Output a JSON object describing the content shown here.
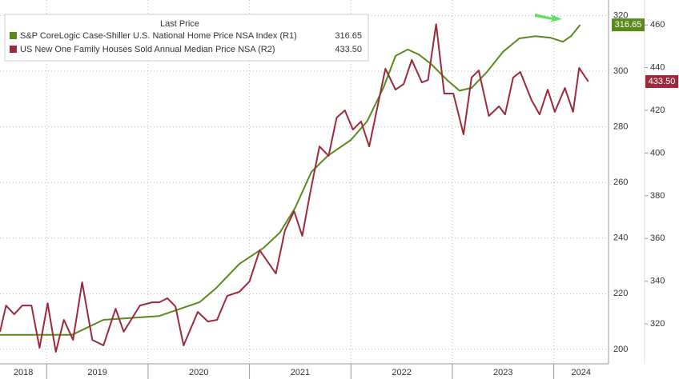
{
  "chart_data": {
    "type": "line",
    "legend_title": "Last Price",
    "xlim": [
      2018.54,
      2024.54
    ],
    "xgrid": [
      2019,
      2020,
      2021,
      2022,
      2023,
      2024
    ],
    "xticks": [
      {
        "value": 2018.77,
        "label": "2018"
      },
      {
        "value": 2019.5,
        "label": "2019"
      },
      {
        "value": 2020.5,
        "label": "2020"
      },
      {
        "value": 2021.5,
        "label": "2021"
      },
      {
        "value": 2022.5,
        "label": "2022"
      },
      {
        "value": 2023.5,
        "label": "2023"
      },
      {
        "value": 2024.27,
        "label": "2024"
      }
    ],
    "ylim": [
      194.8,
      325.6
    ],
    "yticks": [
      200,
      220,
      240,
      260,
      280,
      300,
      320
    ],
    "y2lim": [
      301.3,
      471.7
    ],
    "y2ticks": [
      320,
      340,
      360,
      380,
      400,
      420,
      440,
      460
    ],
    "grid": true,
    "series": [
      {
        "name": "S&P CoreLogic Case-Shiller U.S. National Home Price NSA Index (R1)",
        "color": "#5a8a1c",
        "axis": "y",
        "last_label": "316.65",
        "x": [
          2018.54,
          2019.25,
          2019.56,
          2020.11,
          2020.51,
          2020.67,
          2020.9,
          2021.14,
          2021.3,
          2021.45,
          2021.61,
          2021.77,
          2022.0,
          2022.16,
          2022.32,
          2022.44,
          2022.56,
          2022.67,
          2022.79,
          2022.95,
          2023.07,
          2023.19,
          2023.34,
          2023.5,
          2023.66,
          2023.82,
          2023.97,
          2024.09,
          2024.17,
          2024.26
        ],
        "values": [
          205.2,
          205.2,
          210.6,
          212,
          217,
          222,
          230.7,
          236.5,
          242,
          250.9,
          263.8,
          269.5,
          275.3,
          282,
          294,
          305.5,
          307.8,
          306,
          302.6,
          296.8,
          293,
          294,
          299.7,
          307,
          311.8,
          312.6,
          312,
          310.6,
          312.6,
          316.65
        ]
      },
      {
        "name": "US New One Family Houses Sold Annual Median Price NSA (R2)",
        "color": "#9c2a3c",
        "axis": "y2",
        "last_label": "433.50",
        "x": [
          2018.54,
          2018.6,
          2018.68,
          2018.76,
          2018.85,
          2018.93,
          2019.01,
          2019.09,
          2019.17,
          2019.26,
          2019.35,
          2019.45,
          2019.56,
          2019.68,
          2019.76,
          2019.92,
          2020.04,
          2020.11,
          2020.19,
          2020.27,
          2020.35,
          2020.49,
          2020.59,
          2020.68,
          2020.78,
          2020.9,
          2021.0,
          2021.1,
          2021.26,
          2021.35,
          2021.44,
          2021.52,
          2021.6,
          2021.69,
          2021.78,
          2021.86,
          2021.94,
          2022.02,
          2022.1,
          2022.18,
          2022.34,
          2022.44,
          2022.52,
          2022.6,
          2022.7,
          2022.76,
          2022.84,
          2022.92,
          2023.01,
          2023.11,
          2023.19,
          2023.26,
          2023.36,
          2023.46,
          2023.52,
          2023.6,
          2023.67,
          2023.78,
          2023.86,
          2023.94,
          2024.01,
          2024.11,
          2024.19,
          2024.25,
          2024.34
        ],
        "values": [
          316.3,
          328.6,
          324.5,
          328.6,
          328.6,
          308.8,
          329.7,
          306.9,
          321.9,
          312.5,
          339.5,
          312.5,
          309.9,
          327.1,
          316.3,
          328.6,
          330.1,
          330.1,
          332,
          328.2,
          309.9,
          325.6,
          321.1,
          321.9,
          333.1,
          335,
          339.9,
          354.5,
          343.6,
          363.8,
          372.8,
          361.2,
          381.8,
          403.1,
          398.7,
          416.6,
          420,
          411,
          414.8,
          403.1,
          439.5,
          429.7,
          432.3,
          443.6,
          433.1,
          434.2,
          460.4,
          427.9,
          427.9,
          408.8,
          435.4,
          438.7,
          417.4,
          421.9,
          418.1,
          435.4,
          438,
          424.9,
          418.1,
          429.7,
          419.3,
          430.5,
          419.3,
          439.9,
          433.5
        ]
      }
    ]
  }
}
